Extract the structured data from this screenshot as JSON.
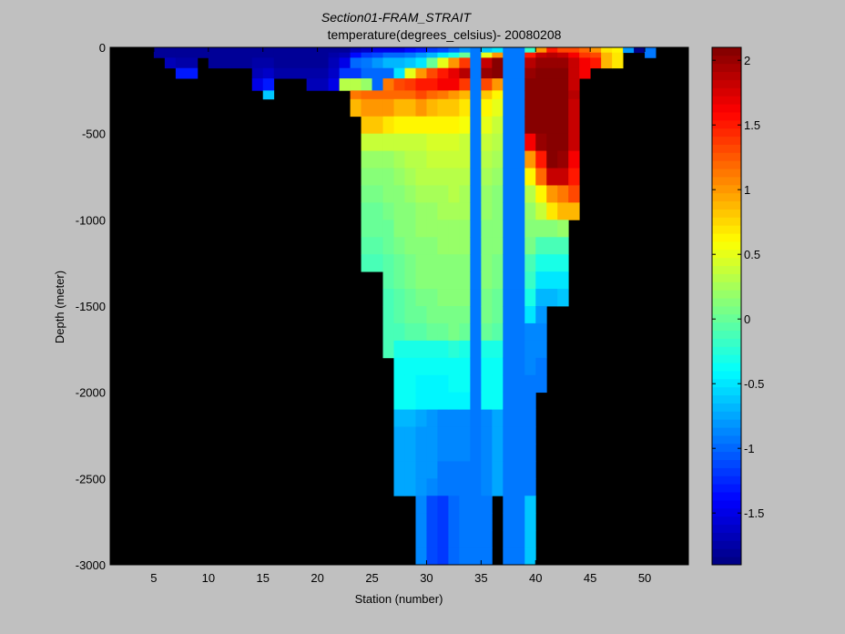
{
  "figure": {
    "title_line1": "Section01-FRAM_STRAIT",
    "title_line2": "temperature(degrees_celsius)- 20080208"
  },
  "chart_data": [
    {
      "type": "heatmap",
      "title": "Section01-FRAM_STRAIT",
      "subtitle": "temperature(degrees_celsius)- 20080208",
      "xlabel": "Station (number)",
      "ylabel": "Depth (meter)",
      "xlim": [
        1,
        54
      ],
      "ylim": [
        -3000,
        0
      ],
      "x_ticks": [
        5,
        10,
        15,
        20,
        25,
        30,
        35,
        40,
        45,
        50
      ],
      "y_ticks": [
        0,
        -500,
        -1000,
        -1500,
        -2000,
        -2500,
        -3000
      ],
      "no_data_color": "#000000",
      "colormap": "jet",
      "clim": [
        -1.9,
        2.1
      ],
      "x_edges": [
        1,
        5,
        6,
        7,
        9,
        10,
        12,
        14,
        15,
        16,
        18,
        19,
        21,
        22,
        23,
        24,
        25,
        26,
        27,
        28,
        29,
        30,
        31,
        32,
        33,
        34,
        35,
        36,
        37,
        38,
        39,
        40,
        41,
        42,
        43,
        44,
        45,
        46,
        47,
        48,
        49,
        50,
        51,
        54
      ],
      "y_edges": [
        0,
        -30,
        -60,
        -120,
        -180,
        -250,
        -300,
        -400,
        -500,
        -600,
        -700,
        -800,
        -900,
        -1000,
        -1100,
        -1200,
        -1300,
        -1400,
        -1500,
        -1600,
        -1700,
        -1800,
        -1900,
        -2000,
        -2100,
        -2200,
        -2300,
        -2400,
        -2500,
        -2600,
        -2700,
        -2800,
        -2900,
        -3000
      ],
      "columns": [
        {
          "x0": 1,
          "x1": 5,
          "bottom": 0,
          "values": []
        },
        {
          "x0": 5,
          "x1": 6,
          "bottom": -60,
          "values": [
            -1.8,
            -1.8
          ]
        },
        {
          "x0": 6,
          "x1": 7,
          "bottom": -120,
          "values": [
            -1.8,
            -1.8,
            -1.7
          ]
        },
        {
          "x0": 7,
          "x1": 9,
          "bottom": -180,
          "values": [
            -1.8,
            -1.8,
            -1.75,
            -1.3
          ]
        },
        {
          "x0": 9,
          "x1": 10,
          "bottom": -60,
          "values": [
            -1.8,
            -1.8
          ]
        },
        {
          "x0": 10,
          "x1": 12,
          "bottom": -120,
          "values": [
            -1.8,
            -1.8,
            -1.8
          ]
        },
        {
          "x0": 12,
          "x1": 14,
          "bottom": -120,
          "values": [
            -1.8,
            -1.8,
            -1.8
          ]
        },
        {
          "x0": 14,
          "x1": 15,
          "bottom": -250,
          "values": [
            -1.8,
            -1.8,
            -1.75,
            -1.7,
            -1.5
          ]
        },
        {
          "x0": 15,
          "x1": 16,
          "bottom": -300,
          "values": [
            -1.8,
            -1.8,
            -1.75,
            -1.6,
            -1.3,
            -0.6
          ]
        },
        {
          "x0": 16,
          "x1": 18,
          "bottom": -180,
          "values": [
            -1.8,
            -1.8,
            -1.8,
            -1.75
          ]
        },
        {
          "x0": 18,
          "x1": 19,
          "bottom": -180,
          "values": [
            -1.8,
            -1.8,
            -1.8,
            -1.75
          ]
        },
        {
          "x0": 19,
          "x1": 21,
          "bottom": -250,
          "values": [
            -1.8,
            -1.8,
            -1.8,
            -1.75,
            -1.7
          ]
        },
        {
          "x0": 21,
          "x1": 22,
          "bottom": -250,
          "values": [
            -1.8,
            -1.75,
            -1.7,
            -1.6,
            -1.5
          ]
        },
        {
          "x0": 22,
          "x1": 23,
          "bottom": -250,
          "values": [
            -1.8,
            -1.7,
            -1.5,
            -1.2,
            0.3
          ]
        },
        {
          "x0": 23,
          "x1": 24,
          "bottom": -400,
          "values": [
            -1.7,
            -1.4,
            -1.0,
            -1.2,
            0.3,
            1.1,
            0.9
          ]
        },
        {
          "x0": 24,
          "x1": 25,
          "bottom": -1200,
          "values": [
            -1.6,
            -1.2,
            -0.9,
            -1.0,
            0.2,
            1.2,
            1.0,
            0.8,
            0.4,
            0.2,
            0.1,
            0.05,
            0.0,
            0.0,
            -0.05,
            -0.1
          ]
        },
        {
          "x0": 25,
          "x1": 26,
          "bottom": -1200,
          "values": [
            -1.5,
            -1.1,
            -0.8,
            -1.0,
            -1.0,
            1.2,
            1.0,
            0.8,
            0.4,
            0.2,
            0.1,
            0.05,
            0.0,
            0.0,
            -0.05,
            -0.1
          ]
        },
        {
          "x0": 26,
          "x1": 27,
          "bottom": -1700,
          "values": [
            -1.5,
            -1.0,
            -0.7,
            -1.0,
            1.1,
            1.2,
            1.0,
            0.7,
            0.4,
            0.2,
            0.15,
            0.1,
            0.05,
            0.0,
            0.0,
            -0.05,
            -0.05,
            -0.1,
            -0.1,
            -0.15,
            -0.15
          ]
        },
        {
          "x0": 27,
          "x1": 28,
          "bottom": -2500,
          "values": [
            -1.5,
            -1.0,
            -0.7,
            -0.5,
            1.3,
            1.2,
            0.9,
            0.6,
            0.4,
            0.25,
            0.2,
            0.15,
            0.1,
            0.1,
            0.05,
            0.0,
            0.0,
            -0.05,
            -0.05,
            -0.1,
            -0.3,
            -0.4,
            -0.4,
            -0.4,
            -0.7,
            -0.75,
            -0.75,
            -0.75,
            -0.75
          ]
        },
        {
          "x0": 28,
          "x1": 29,
          "bottom": -2500,
          "values": [
            -1.4,
            -0.9,
            -0.6,
            0.5,
            1.4,
            1.2,
            0.9,
            0.6,
            0.4,
            0.3,
            0.25,
            0.2,
            0.15,
            0.15,
            0.1,
            0.05,
            0.05,
            0.0,
            0.0,
            -0.05,
            -0.3,
            -0.4,
            -0.4,
            -0.4,
            -0.7,
            -0.75,
            -0.75,
            -0.75,
            -0.75
          ]
        },
        {
          "x0": 29,
          "x1": 30,
          "bottom": -3000,
          "values": [
            -1.3,
            -0.8,
            -0.5,
            1.0,
            1.5,
            1.3,
            1.0,
            0.6,
            0.4,
            0.3,
            0.3,
            0.25,
            0.2,
            0.2,
            0.15,
            0.1,
            0.1,
            0.05,
            0.0,
            -0.05,
            -0.3,
            -0.4,
            -0.45,
            -0.45,
            -0.75,
            -0.8,
            -0.8,
            -0.8,
            -0.8,
            -0.85,
            -0.85,
            -0.85,
            -0.85
          ]
        },
        {
          "x0": 30,
          "x1": 31,
          "bottom": -3000,
          "values": [
            -1.2,
            -0.7,
            0.0,
            1.3,
            1.5,
            1.2,
            0.9,
            0.6,
            0.45,
            0.35,
            0.3,
            0.25,
            0.2,
            0.2,
            0.15,
            0.1,
            0.1,
            0.05,
            0.05,
            0.0,
            -0.3,
            -0.4,
            -0.45,
            -0.45,
            -0.8,
            -0.8,
            -0.8,
            -0.8,
            -0.85,
            -1.1,
            -1.1,
            -1.1,
            -1.1
          ]
        },
        {
          "x0": 31,
          "x1": 32,
          "bottom": -3000,
          "values": [
            -1.1,
            -0.5,
            0.5,
            1.5,
            1.6,
            1.1,
            0.8,
            0.6,
            0.45,
            0.35,
            0.3,
            0.25,
            0.25,
            0.2,
            0.2,
            0.15,
            0.1,
            0.1,
            0.05,
            0.0,
            -0.3,
            -0.4,
            -0.45,
            -0.45,
            -0.85,
            -0.85,
            -0.85,
            -0.9,
            -0.9,
            -1.2,
            -1.2,
            -1.2,
            -1.2
          ]
        },
        {
          "x0": 32,
          "x1": 33,
          "bottom": -3000,
          "values": [
            -1.0,
            -0.3,
            1.0,
            1.7,
            1.6,
            1.0,
            0.8,
            0.6,
            0.45,
            0.35,
            0.3,
            0.3,
            0.25,
            0.2,
            0.2,
            0.15,
            0.15,
            0.1,
            0.05,
            0.05,
            -0.25,
            -0.35,
            -0.4,
            -0.45,
            -0.85,
            -0.85,
            -0.85,
            -0.9,
            -0.9,
            -1.0,
            -1.0,
            -1.0,
            -1.0
          ]
        },
        {
          "x0": 33,
          "x1": 34,
          "bottom": -3000,
          "values": [
            -0.8,
            0.0,
            1.4,
            1.9,
            1.4,
            0.9,
            0.7,
            0.55,
            0.4,
            0.35,
            0.3,
            0.25,
            0.25,
            0.2,
            0.2,
            0.15,
            0.1,
            0.1,
            0.05,
            0.0,
            -0.3,
            -0.35,
            -0.4,
            -0.45,
            -0.85,
            -0.85,
            -0.85,
            -0.9,
            -0.9,
            -0.95,
            -0.95,
            -0.95,
            -0.95
          ]
        },
        {
          "x0": 34,
          "x1": 35,
          "bottom": -3000,
          "values": [
            -0.95,
            -0.95,
            -0.95,
            -0.95,
            -0.95,
            -0.95,
            -0.95,
            -0.95,
            -0.95,
            -0.95,
            -0.95,
            -0.95,
            -0.95,
            -0.95,
            -0.95,
            -0.95,
            -0.95,
            -0.95,
            -0.95,
            -0.95,
            -0.95,
            -0.95,
            -0.95,
            -0.95,
            -0.95,
            -0.95,
            -0.95,
            -0.95,
            -0.95,
            -0.95,
            -0.95,
            -0.95,
            -0.95
          ]
        },
        {
          "x0": 35,
          "x1": 36,
          "bottom": -3000,
          "values": [
            -0.6,
            0.5,
            1.8,
            2.0,
            1.3,
            0.8,
            0.6,
            0.5,
            0.4,
            0.3,
            0.25,
            0.2,
            0.2,
            0.15,
            0.15,
            0.1,
            0.1,
            0.05,
            0.05,
            0.0,
            -0.3,
            -0.35,
            -0.4,
            -0.4,
            -0.85,
            -0.85,
            -0.85,
            -0.85,
            -0.85,
            -0.9,
            -0.9,
            -0.9,
            -0.9
          ]
        },
        {
          "x0": 36,
          "x1": 37,
          "bottom": -2500,
          "values": [
            -0.5,
            1.0,
            2.1,
            2.1,
            1.0,
            0.6,
            0.5,
            0.4,
            0.3,
            0.25,
            0.2,
            0.15,
            0.15,
            0.1,
            0.1,
            0.05,
            0.05,
            0.0,
            0.0,
            -0.05,
            -0.3,
            -0.35,
            -0.4,
            -0.4,
            -0.75,
            -0.75,
            -0.75,
            -0.75,
            -0.75
          ]
        },
        {
          "x0": 37,
          "x1": 38,
          "bottom": -3000,
          "values": [
            -0.95,
            -0.95,
            -0.95,
            -0.95,
            -0.95,
            -0.95,
            -0.95,
            -0.95,
            -0.95,
            -0.95,
            -0.95,
            -0.95,
            -0.95,
            -0.95,
            -0.95,
            -0.95,
            -0.95,
            -0.95,
            -0.95,
            -0.95,
            -0.95,
            -0.95,
            -0.95,
            -0.95,
            -0.95,
            -0.95,
            -0.95,
            -0.95,
            -0.95,
            -0.95,
            -0.95,
            -0.95,
            -0.95
          ]
        },
        {
          "x0": 38,
          "x1": 39,
          "bottom": -3000,
          "values": [
            -0.95,
            -0.95,
            -0.95,
            -0.95,
            -0.95,
            -0.95,
            -0.95,
            -0.95,
            -0.95,
            -0.95,
            -0.95,
            -0.95,
            -0.95,
            -0.95,
            -0.95,
            -0.95,
            -0.95,
            -0.95,
            -0.95,
            -0.95,
            -0.95,
            -0.95,
            -0.95,
            -0.95,
            -0.95,
            -0.95,
            -0.95,
            -0.95,
            -0.95,
            -0.95,
            -0.95,
            -0.95,
            -0.95
          ]
        },
        {
          "x0": 39,
          "x1": 40,
          "bottom": -3000,
          "values": [
            -0.2,
            1.5,
            1.9,
            2.0,
            2.1,
            2.1,
            2.1,
            2.1,
            1.6,
            1.0,
            0.6,
            0.3,
            0.2,
            0.1,
            0.05,
            -0.1,
            -0.2,
            -0.3,
            -0.5,
            -0.85,
            -0.85,
            -0.85,
            -0.9,
            -0.9,
            -0.9,
            -0.9,
            -0.9,
            -0.9,
            -0.9,
            -0.65,
            -0.65,
            -0.65,
            -0.65
          ]
        },
        {
          "x0": 40,
          "x1": 41,
          "bottom": -2000,
          "values": [
            1.0,
            1.8,
            2.0,
            2.1,
            2.1,
            2.1,
            2.1,
            2.1,
            2.0,
            1.5,
            1.2,
            0.6,
            0.4,
            0.1,
            -0.1,
            -0.3,
            -0.5,
            -0.7,
            -0.8,
            -0.85,
            -0.85,
            -0.9,
            -0.9
          ]
        },
        {
          "x0": 41,
          "x1": 42,
          "bottom": -1500,
          "values": [
            1.5,
            1.9,
            2.0,
            2.1,
            2.1,
            2.1,
            2.1,
            2.1,
            2.1,
            2.1,
            1.8,
            1.0,
            0.7,
            0.1,
            -0.1,
            -0.3,
            -0.5,
            -0.7
          ]
        },
        {
          "x0": 42,
          "x1": 43,
          "bottom": -1500,
          "values": [
            1.3,
            1.8,
            2.0,
            2.1,
            2.1,
            2.1,
            2.1,
            2.1,
            2.1,
            2.0,
            1.8,
            1.1,
            0.9,
            0.2,
            -0.1,
            -0.3,
            -0.5,
            -0.6
          ]
        },
        {
          "x0": 43,
          "x1": 44,
          "bottom": -1000,
          "values": [
            1.3,
            1.6,
            1.8,
            1.8,
            1.8,
            1.9,
            1.8,
            1.8,
            1.8,
            1.6,
            1.5,
            1.3,
            0.9
          ]
        },
        {
          "x0": 44,
          "x1": 45,
          "bottom": -180,
          "values": [
            1.2,
            1.4,
            1.6,
            1.6
          ]
        },
        {
          "x0": 45,
          "x1": 46,
          "bottom": -120,
          "values": [
            1.0,
            1.3,
            1.5
          ]
        },
        {
          "x0": 46,
          "x1": 47,
          "bottom": -120,
          "values": [
            0.7,
            0.9,
            0.9
          ]
        },
        {
          "x0": 47,
          "x1": 48,
          "bottom": -120,
          "values": [
            0.6,
            0.7,
            0.7
          ]
        },
        {
          "x0": 48,
          "x1": 49,
          "bottom": -30,
          "values": [
            -0.8
          ]
        },
        {
          "x0": 49,
          "x1": 50,
          "bottom": -30,
          "values": [
            -1.9
          ]
        },
        {
          "x0": 50,
          "x1": 51,
          "bottom": -60,
          "values": [
            -0.9,
            -0.9
          ]
        },
        {
          "x0": 51,
          "x1": 54,
          "bottom": 0,
          "values": []
        }
      ]
    },
    {
      "type": "colorbar",
      "colormap": "jet",
      "clim": [
        -1.9,
        2.1
      ],
      "n_steps": 64,
      "ticks": [
        2,
        1.5,
        1,
        0.5,
        0,
        -0.5,
        -1,
        -1.5
      ],
      "tick_labels": [
        "2",
        "1.5",
        "1",
        "0.5",
        "0",
        "-0.5",
        "-1",
        "-1.5"
      ]
    }
  ]
}
